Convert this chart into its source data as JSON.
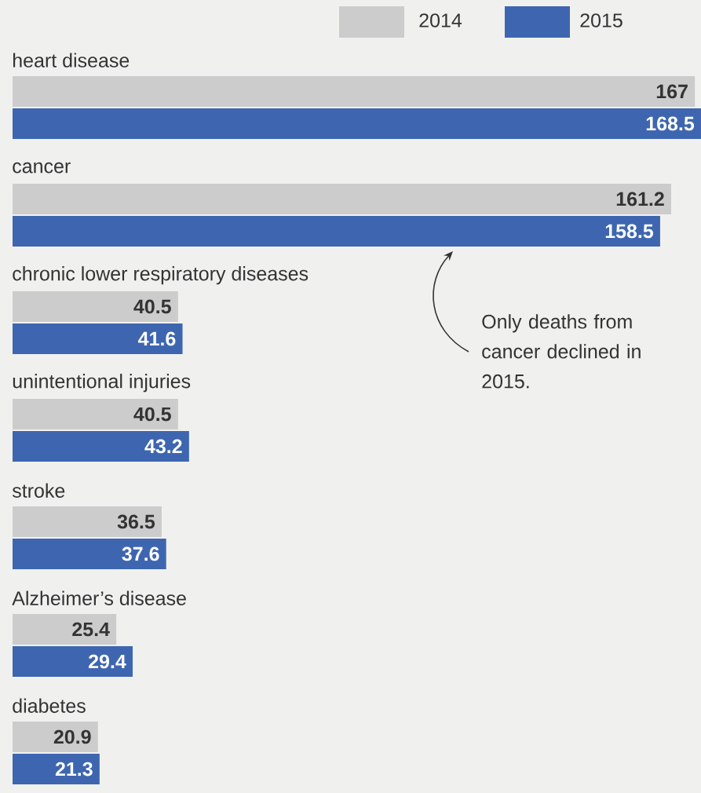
{
  "chart_data": {
    "type": "bar",
    "orientation": "horizontal",
    "categories": [
      "heart disease",
      "cancer",
      "chronic lower respiratory diseases",
      "unintentional injuries",
      "stroke",
      "Alzheimer’s disease",
      "diabetes"
    ],
    "series": [
      {
        "name": "2014",
        "color": "#cccccc",
        "values": [
          167,
          161.2,
          40.5,
          40.5,
          36.5,
          25.4,
          20.9
        ]
      },
      {
        "name": "2015",
        "color": "#3e66b0",
        "values": [
          168.5,
          158.5,
          41.6,
          43.2,
          37.6,
          29.4,
          21.3
        ]
      }
    ],
    "data_labels": true,
    "legend": "top right",
    "annotations": [
      "Only deaths from cancer declined in 2015."
    ]
  }
}
